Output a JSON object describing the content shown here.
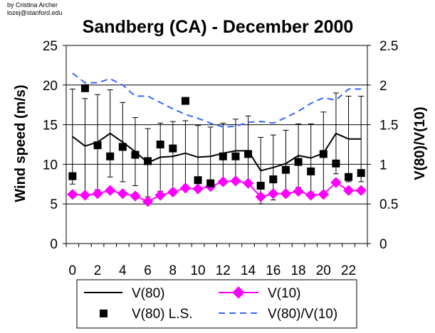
{
  "credit": {
    "line1": "by Cristina Archer",
    "line2": "lozej@stanford.edu"
  },
  "chart_data": {
    "type": "line",
    "title": "Sandberg (CA) - December 2000",
    "xlabel": "",
    "ylabel": "Wind speed (m/s)",
    "y2label": "V(80)/V(10)",
    "x": [
      0,
      1,
      2,
      3,
      4,
      5,
      6,
      7,
      8,
      9,
      10,
      11,
      12,
      13,
      14,
      15,
      16,
      17,
      18,
      19,
      20,
      21,
      22,
      23
    ],
    "x_tick_labels": [
      "0",
      "2",
      "4",
      "6",
      "8",
      "10",
      "12",
      "14",
      "16",
      "18",
      "20",
      "22"
    ],
    "x_tick_values": [
      0,
      2,
      4,
      6,
      8,
      10,
      12,
      14,
      16,
      18,
      20,
      22
    ],
    "ylim": [
      0,
      25
    ],
    "y_ticks": [
      "0",
      "5",
      "10",
      "15",
      "20",
      "25"
    ],
    "y2lim": [
      0,
      2.5
    ],
    "y2_ticks": [
      "0",
      "0.5",
      "1",
      "1.5",
      "2",
      "2.5"
    ],
    "grid": "horizontal",
    "colors": {
      "v80": "#000000",
      "v10": "#ff00ff",
      "v80ls": "#000000",
      "ratio": "#3366ff",
      "errorbar": "#000000"
    },
    "series": [
      {
        "name": "V(80)",
        "axis": "left",
        "style": "line",
        "values": [
          13.5,
          12.3,
          12.8,
          13.9,
          12.8,
          11.6,
          10.2,
          10.9,
          11.0,
          11.4,
          10.9,
          11.0,
          11.4,
          11.7,
          11.7,
          9.2,
          9.6,
          10.1,
          11.1,
          10.8,
          11.4,
          13.9,
          13.2,
          13.2
        ],
        "error": [
          6.0,
          6.0,
          6.0,
          5.5,
          5.0,
          4.3,
          4.3,
          4.3,
          4.4,
          4.1,
          4.0,
          3.7,
          3.8,
          4.0,
          4.4,
          4.2,
          4.1,
          4.2,
          4.0,
          4.3,
          5.2,
          5.1,
          5.4,
          5.4
        ]
      },
      {
        "name": "V(10)",
        "axis": "left",
        "style": "line-diamond",
        "values": [
          6.2,
          6.1,
          6.3,
          6.7,
          6.3,
          6.0,
          5.3,
          6.1,
          6.5,
          7.0,
          6.9,
          7.2,
          7.8,
          7.9,
          7.6,
          5.9,
          6.3,
          6.3,
          6.6,
          6.1,
          6.2,
          7.7,
          6.7,
          6.7
        ]
      },
      {
        "name": "V(80) L.S.",
        "axis": "left",
        "style": "square",
        "values": [
          8.5,
          19.6,
          12.4,
          11.0,
          12.2,
          11.2,
          10.4,
          12.5,
          12.0,
          18.0,
          8.0,
          7.6,
          11.0,
          11.0,
          11.3,
          7.3,
          8.1,
          9.3,
          10.3,
          9.1,
          11.3,
          10.1,
          8.4,
          8.9
        ]
      },
      {
        "name": "V(80)/V(10)",
        "axis": "right",
        "style": "dashed",
        "values": [
          2.15,
          2.03,
          2.03,
          2.08,
          2.0,
          1.86,
          1.86,
          1.78,
          1.7,
          1.63,
          1.58,
          1.52,
          1.47,
          1.48,
          1.53,
          1.54,
          1.52,
          1.59,
          1.67,
          1.77,
          1.84,
          1.81,
          1.95,
          1.95
        ]
      }
    ],
    "legend": {
      "placement": "bottom",
      "items": [
        "V(80)",
        "V(10)",
        "V(80) L.S.",
        "V(80)/V(10)"
      ]
    }
  }
}
